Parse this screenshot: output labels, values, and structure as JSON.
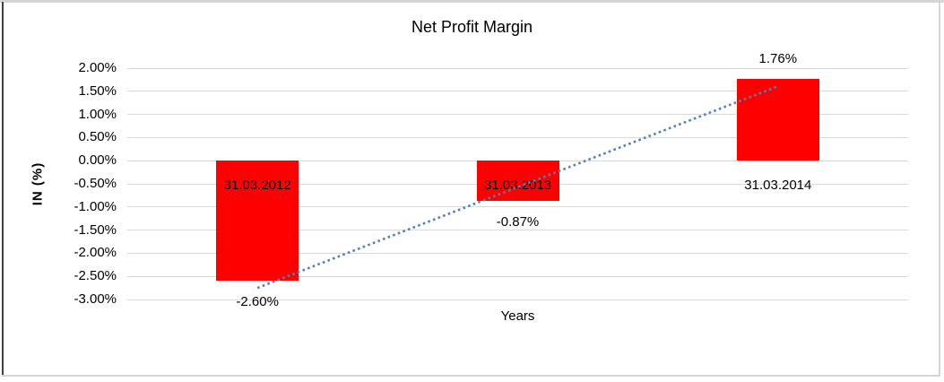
{
  "window": {
    "background": "#FFFFFF",
    "border_light_color": "#D5D5D5",
    "border_dark_color": "#3F3F3F"
  },
  "chart_data": {
    "type": "bar",
    "title": "Net Profit Margin",
    "xlabel": "Years",
    "ylabel": "IN (%)",
    "categories": [
      "31.03.2012",
      "31.03.2013",
      "31.03.2014"
    ],
    "values": [
      -2.6,
      -0.87,
      1.76
    ],
    "data_labels": [
      "-2.60%",
      "-0.87%",
      "1.76%"
    ],
    "ylim": [
      -3.0,
      2.0
    ],
    "ytick_step": 0.5,
    "ytick_labels": [
      "2.00%",
      "1.50%",
      "1.00%",
      "0.50%",
      "0.00%",
      "-0.50%",
      "-1.00%",
      "-1.50%",
      "-2.00%",
      "-2.50%",
      "-3.00%"
    ],
    "grid": true,
    "legend": "none",
    "bar_color": "#FF0000",
    "gridline_color": "#D9D9D9",
    "text_color": "#000000",
    "trendline": {
      "type": "linear",
      "style": "dotted",
      "color": "#4F81BD"
    }
  }
}
